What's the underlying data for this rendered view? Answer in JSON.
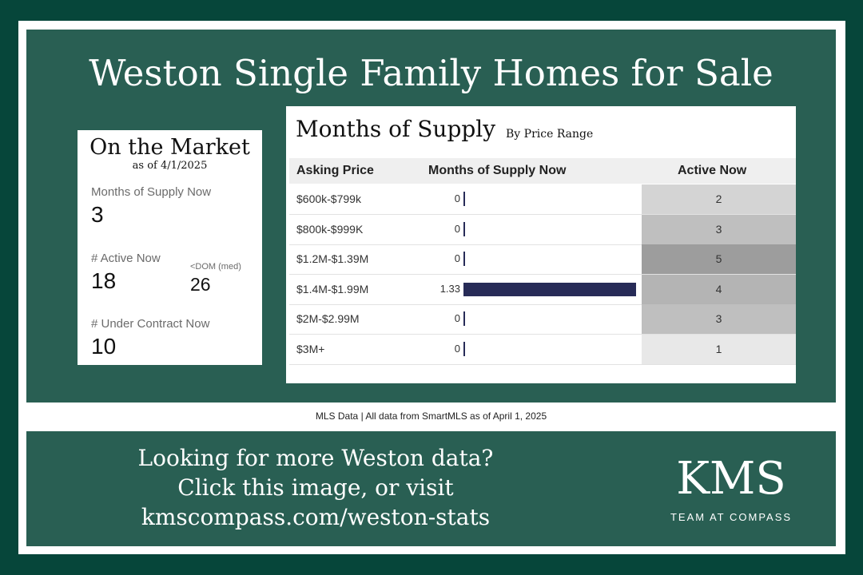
{
  "title": "Weston Single Family Homes for Sale",
  "stats_card": {
    "title": "On the Market",
    "subtitle": "as of 4/1/2025",
    "months_supply_label": "Months of Supply Now",
    "months_supply_value": "3",
    "active_label": "# Active Now",
    "active_value": "18",
    "dom_label": "<DOM (med)",
    "dom_value": "26",
    "under_contract_label": "# Under Contract Now",
    "under_contract_value": "10"
  },
  "table": {
    "title": "Months of Supply",
    "subtitle": "By Price Range",
    "headers": [
      "Asking Price",
      "Months of Supply Now",
      "Active Now"
    ]
  },
  "chart_data": {
    "type": "table",
    "title": "Months of Supply",
    "subtitle": "By Price Range",
    "columns": [
      "Asking Price",
      "Months of Supply Now",
      "Active Now"
    ],
    "rows": [
      {
        "price": "$600k-$799k",
        "months": 0,
        "months_label": "0",
        "active": 2
      },
      {
        "price": "$800k-$999K",
        "months": 0,
        "months_label": "0",
        "active": 3
      },
      {
        "price": "$1.2M-$1.39M",
        "months": 0,
        "months_label": "0",
        "active": 5
      },
      {
        "price": "$1.4M-$1.99M",
        "months": 1.33,
        "months_label": "1.33",
        "active": 4
      },
      {
        "price": "$2M-$2.99M",
        "months": 0,
        "months_label": "0",
        "active": 3
      },
      {
        "price": "$3M+",
        "months": 0,
        "months_label": "0",
        "active": 1
      }
    ],
    "bar_color": "#272b57",
    "active_heat_colors": {
      "1": "#e8e8e8",
      "2": "#d4d4d4",
      "3": "#bfbfbf",
      "4": "#b4b4b4",
      "5": "#9d9d9d"
    }
  },
  "footnote": "MLS Data | All data from SmartMLS as of April 1, 2025",
  "cta": {
    "line1": "Looking for more Weston data?",
    "line2": "Click this image, or visit",
    "line3": "kmscompass.com/weston-stats"
  },
  "logo": {
    "main": "KMS",
    "sub": "TEAM AT COMPASS"
  },
  "colors": {
    "background": "#06463a",
    "panel": "#295f53"
  }
}
